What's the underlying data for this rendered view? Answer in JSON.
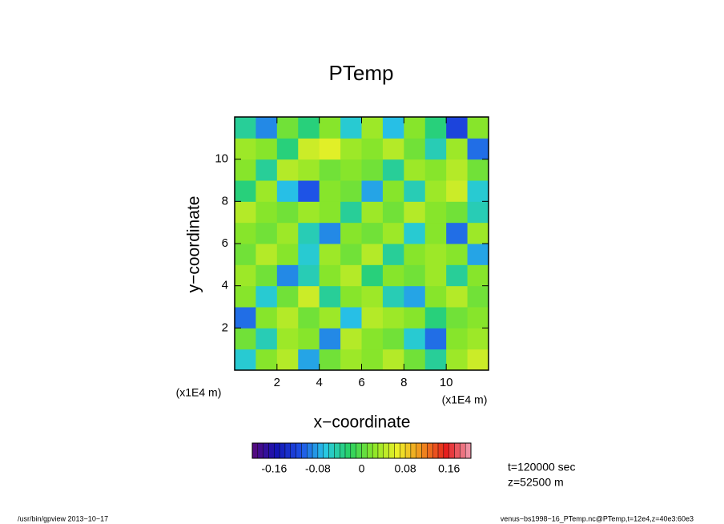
{
  "chart_data": {
    "type": "heatmap",
    "title": "PTemp",
    "x_label": "x−coordinate",
    "y_label": "y−coordinate",
    "x_unit": "(x1E4 m)",
    "y_unit": "(x1E4 m)",
    "xlim": [
      0,
      12
    ],
    "ylim": [
      0,
      12
    ],
    "xticks": [
      2,
      4,
      6,
      8,
      10
    ],
    "yticks": [
      2,
      4,
      6,
      8,
      10
    ],
    "x": [
      0.5,
      1.5,
      2.5,
      3.5,
      4.5,
      5.5,
      6.5,
      7.5,
      8.5,
      9.5,
      10.5,
      11.5
    ],
    "y": [
      0.5,
      1.5,
      2.5,
      3.5,
      4.5,
      5.5,
      6.5,
      7.5,
      8.5,
      9.5,
      10.5,
      11.5
    ],
    "z": [
      [
        -0.06,
        0.02,
        0.04,
        -0.08,
        0.01,
        0.03,
        0.02,
        0.04,
        0.01,
        -0.04,
        0.03,
        0.05
      ],
      [
        0.01,
        -0.05,
        0.03,
        0.02,
        -0.09,
        0.04,
        0.02,
        0.01,
        -0.06,
        -0.1,
        0.02,
        0.03
      ],
      [
        -0.1,
        0.02,
        0.04,
        0.01,
        0.03,
        -0.07,
        0.04,
        0.03,
        0.02,
        -0.03,
        0.01,
        0.02
      ],
      [
        0.02,
        -0.06,
        0.01,
        0.05,
        -0.04,
        0.02,
        0.03,
        -0.05,
        -0.08,
        0.02,
        0.04,
        0.01
      ],
      [
        0.03,
        0.01,
        -0.09,
        -0.05,
        0.02,
        0.04,
        -0.03,
        0.02,
        0.01,
        0.03,
        -0.04,
        0.02
      ],
      [
        0.01,
        0.04,
        0.02,
        -0.06,
        0.03,
        0.01,
        0.04,
        -0.04,
        0.02,
        0.03,
        0.02,
        -0.08
      ],
      [
        0.02,
        0.01,
        0.03,
        -0.05,
        -0.09,
        0.02,
        0.01,
        0.03,
        -0.06,
        0.02,
        -0.1,
        0.03
      ],
      [
        0.04,
        0.02,
        0.01,
        0.03,
        0.02,
        -0.04,
        0.03,
        0.01,
        0.04,
        0.02,
        0.01,
        -0.05
      ],
      [
        -0.03,
        0.03,
        -0.07,
        -0.11,
        0.02,
        0.01,
        -0.08,
        0.02,
        -0.05,
        0.03,
        0.05,
        -0.06
      ],
      [
        0.02,
        -0.04,
        0.04,
        0.03,
        0.01,
        0.02,
        0.01,
        -0.04,
        0.03,
        0.02,
        0.04,
        0.01
      ],
      [
        0.03,
        0.02,
        -0.03,
        0.05,
        0.06,
        0.03,
        0.02,
        0.04,
        0.01,
        -0.05,
        0.03,
        -0.1
      ],
      [
        -0.04,
        -0.09,
        0.01,
        -0.03,
        0.02,
        -0.06,
        0.03,
        -0.07,
        0.02,
        -0.03,
        -0.12,
        0.02
      ]
    ],
    "colorbar": {
      "lim": [
        -0.2,
        0.2
      ],
      "levels": 40,
      "ticks": [
        -0.16,
        -0.08,
        0,
        0.08,
        0.16
      ]
    },
    "colormap": [
      "#5a0a7a",
      "#1414b4",
      "#1e50e6",
      "#28c8e6",
      "#28d264",
      "#8ce628",
      "#f0f028",
      "#f08c1e",
      "#e61e1e",
      "#f0a0b4"
    ],
    "annotations": [
      "t=120000 sec",
      "z=52500 m"
    ],
    "footer_left": "/usr/bin/gpview   2013−10−17",
    "footer_right": "venus−bs1998−16_PTemp.nc@PTemp,t=12e4,z=40e3:60e3"
  }
}
